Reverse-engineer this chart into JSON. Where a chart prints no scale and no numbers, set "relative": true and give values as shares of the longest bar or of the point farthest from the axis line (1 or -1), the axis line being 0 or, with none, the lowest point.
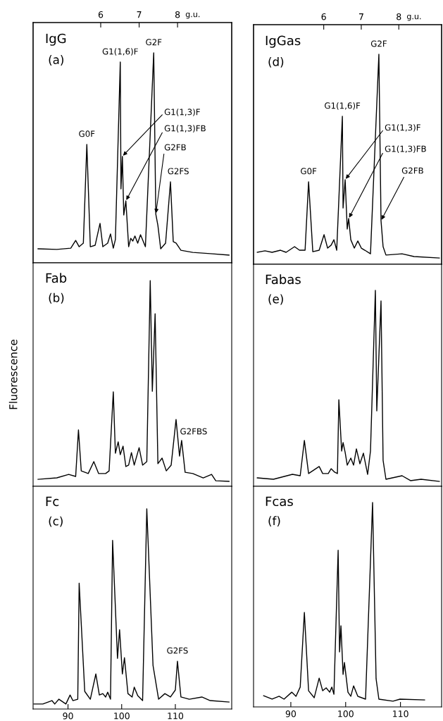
{
  "chart_data": [
    {
      "type": "line",
      "title": "IgG",
      "subtitle": "(a)",
      "relative": true,
      "tick_labels": false,
      "xlim": [
        83.5,
        120.5
      ],
      "x2lim": [
        4.24,
        9.41
      ],
      "x2ticks": [
        6,
        7,
        8
      ],
      "x2label": "g.u.",
      "x": [
        84.42,
        87.92,
        90.52,
        91.43,
        92.08,
        92.86,
        93.51,
        94.16,
        95.06,
        95.97,
        96.49,
        97.4,
        97.92,
        98.44,
        98.83,
        99.74,
        99.87,
        100.13,
        100.39,
        100.78,
        101.3,
        101.69,
        102.08,
        102.47,
        102.99,
        103.51,
        104.42,
        105.97,
        106.36,
        106.75,
        107.27,
        108.18,
        109.09,
        109.61,
        110.13,
        111.04,
        113.25,
        116.49,
        120.0
      ],
      "series": [
        {
          "color": "#000000",
          "values": [
            0.067,
            0.064,
            0.07,
            0.107,
            0.077,
            0.094,
            0.564,
            0.077,
            0.084,
            0.188,
            0.077,
            0.094,
            0.138,
            0.07,
            0.111,
            0.956,
            0.352,
            0.507,
            0.228,
            0.295,
            0.077,
            0.117,
            0.104,
            0.128,
            0.094,
            0.134,
            0.077,
            1.0,
            0.232,
            0.178,
            0.067,
            0.094,
            0.386,
            0.101,
            0.094,
            0.06,
            0.05,
            0.044,
            0.037
          ]
        }
      ],
      "annotations": [
        {
          "text": "G0F",
          "x": 93.51,
          "y": 0.564
        },
        {
          "text": "G1(1,6)F",
          "x": 99.74,
          "y": 0.956
        },
        {
          "text": "G2F",
          "x": 105.97,
          "y": 1.0
        },
        {
          "text": "G1(1,3)F",
          "x": 100.13,
          "y": 0.507
        },
        {
          "text": "G1(1,3)FB",
          "x": 100.78,
          "y": 0.295
        },
        {
          "text": "G2FB",
          "x": 106.36,
          "y": 0.232
        },
        {
          "text": "G2FS",
          "x": 109.09,
          "y": 0.386
        }
      ]
    },
    {
      "type": "line",
      "title": "Fab",
      "subtitle": "(b)",
      "ylabel": "Fluorescence",
      "relative": true,
      "tick_labels": false,
      "xlim": [
        83.5,
        120.5
      ],
      "x": [
        84.42,
        87.92,
        90.13,
        91.43,
        91.95,
        92.47,
        93.77,
        94.81,
        95.71,
        97.01,
        97.66,
        98.44,
        98.83,
        99.35,
        99.74,
        100.26,
        100.78,
        101.3,
        101.82,
        102.34,
        103.25,
        103.9,
        104.68,
        105.32,
        105.71,
        106.23,
        106.75,
        107.53,
        108.31,
        109.22,
        110.13,
        110.78,
        111.17,
        111.82,
        113.25,
        115.19,
        116.75,
        117.53,
        120.0
      ],
      "series": [
        {
          "color": "#000000",
          "values": [
            0.034,
            0.041,
            0.058,
            0.048,
            0.274,
            0.075,
            0.062,
            0.12,
            0.062,
            0.062,
            0.075,
            0.459,
            0.161,
            0.216,
            0.154,
            0.195,
            0.096,
            0.103,
            0.164,
            0.103,
            0.188,
            0.103,
            0.12,
            1.0,
            0.462,
            0.839,
            0.11,
            0.137,
            0.075,
            0.103,
            0.325,
            0.147,
            0.223,
            0.068,
            0.062,
            0.041,
            0.058,
            0.027,
            0.024
          ]
        }
      ],
      "annotations": [
        {
          "text": "G2FBS",
          "x": 110.13,
          "y": 0.325
        }
      ]
    },
    {
      "type": "line",
      "title": "Fc",
      "subtitle": "(c)",
      "relative": true,
      "tick_labels": "x",
      "xlim": [
        83.5,
        120.5
      ],
      "xticks": [
        90,
        100,
        110
      ],
      "x": [
        83.64,
        85.32,
        87.01,
        87.53,
        88.31,
        89.61,
        90.39,
        90.91,
        91.82,
        92.08,
        93.12,
        94.16,
        95.19,
        95.84,
        96.49,
        97.01,
        97.4,
        97.92,
        98.31,
        99.22,
        99.61,
        100.13,
        100.52,
        101.17,
        101.95,
        102.34,
        102.99,
        103.9,
        104.68,
        105.84,
        106.88,
        108.05,
        109.09,
        110.0,
        110.39,
        111.04,
        112.6,
        114.94,
        116.49,
        120.0
      ],
      "series": [
        {
          "color": "#000000",
          "values": [
            0.025,
            0.025,
            0.042,
            0.025,
            0.049,
            0.025,
            0.07,
            0.042,
            0.049,
            0.628,
            0.088,
            0.049,
            0.175,
            0.07,
            0.077,
            0.06,
            0.084,
            0.049,
            0.842,
            0.253,
            0.396,
            0.175,
            0.256,
            0.077,
            0.06,
            0.109,
            0.067,
            0.042,
            1.0,
            0.218,
            0.049,
            0.077,
            0.06,
            0.095,
            0.239,
            0.06,
            0.049,
            0.06,
            0.042,
            0.035
          ]
        }
      ],
      "annotations": [
        {
          "text": "G2FS",
          "x": 110.39,
          "y": 0.239
        }
      ]
    },
    {
      "type": "line",
      "title": "IgGas",
      "subtitle": "(d)",
      "relative": true,
      "tick_labels": false,
      "xlim": [
        83.2,
        117.5
      ],
      "x2lim": [
        4.13,
        9.14
      ],
      "x2ticks": [
        6,
        7,
        8
      ],
      "x2label": "g.u.",
      "x": [
        83.88,
        85.29,
        86.58,
        88.12,
        89.14,
        90.68,
        91.58,
        92.6,
        93.24,
        94.01,
        95.17,
        96.06,
        96.71,
        97.35,
        97.86,
        98.37,
        99.4,
        99.53,
        99.91,
        100.29,
        100.55,
        100.94,
        101.58,
        102.22,
        102.86,
        103.5,
        104.53,
        106.06,
        106.45,
        106.83,
        107.35,
        110.29,
        112.47,
        117.09
      ],
      "series": [
        {
          "color": "#000000",
          "values": [
            0.057,
            0.064,
            0.057,
            0.067,
            0.057,
            0.084,
            0.067,
            0.067,
            0.393,
            0.06,
            0.067,
            0.141,
            0.077,
            0.091,
            0.117,
            0.067,
            0.705,
            0.268,
            0.403,
            0.168,
            0.218,
            0.117,
            0.077,
            0.111,
            0.077,
            0.067,
            0.05,
            1.0,
            0.208,
            0.084,
            0.044,
            0.05,
            0.037,
            0.03
          ]
        }
      ],
      "annotations": [
        {
          "text": "G0F",
          "x": 93.24,
          "y": 0.393
        },
        {
          "text": "G1(1,6)F",
          "x": 99.4,
          "y": 0.705
        },
        {
          "text": "G2F",
          "x": 106.06,
          "y": 1.0
        },
        {
          "text": "G1(1,3)F",
          "x": 99.91,
          "y": 0.403
        },
        {
          "text": "G1(1,3)FB",
          "x": 100.55,
          "y": 0.218
        },
        {
          "text": "G2FB",
          "x": 106.45,
          "y": 0.208
        }
      ]
    },
    {
      "type": "line",
      "title": "Fabas",
      "subtitle": "(e)",
      "relative": true,
      "tick_labels": false,
      "xlim": [
        83.2,
        117.5
      ],
      "x": [
        83.88,
        86.83,
        90.29,
        91.71,
        92.47,
        93.24,
        95.17,
        95.81,
        96.83,
        97.35,
        97.99,
        98.5,
        98.76,
        99.27,
        99.53,
        99.91,
        100.29,
        100.94,
        101.45,
        101.96,
        102.6,
        103.24,
        104.01,
        104.53,
        105.42,
        105.68,
        106.45,
        106.83,
        107.35,
        110.29,
        111.83,
        113.76,
        117.09
      ],
      "series": [
        {
          "color": "#000000",
          "values": [
            0.043,
            0.036,
            0.061,
            0.054,
            0.234,
            0.065,
            0.101,
            0.065,
            0.065,
            0.09,
            0.072,
            0.065,
            0.442,
            0.18,
            0.223,
            0.173,
            0.108,
            0.144,
            0.108,
            0.191,
            0.115,
            0.169,
            0.061,
            0.18,
            1.0,
            0.385,
            0.946,
            0.133,
            0.036,
            0.054,
            0.029,
            0.036,
            0.025
          ]
        }
      ]
    },
    {
      "type": "line",
      "title": "Fcas",
      "subtitle": "(f)",
      "relative": true,
      "tick_labels": "x",
      "xlim": [
        83.2,
        117.5
      ],
      "xticks": [
        90,
        100,
        110
      ],
      "x": [
        85.04,
        86.58,
        87.86,
        88.76,
        90.17,
        90.94,
        91.71,
        92.47,
        93.24,
        94.27,
        95.17,
        95.81,
        96.45,
        97.09,
        97.48,
        97.86,
        98.63,
        98.89,
        99.14,
        99.53,
        99.78,
        100.42,
        100.94,
        101.45,
        102.22,
        103.63,
        104.91,
        105.55,
        106.06,
        108.63,
        109.91,
        114.4
      ],
      "series": [
        {
          "color": "#000000",
          "values": [
            0.055,
            0.038,
            0.052,
            0.038,
            0.072,
            0.052,
            0.097,
            0.462,
            0.079,
            0.045,
            0.141,
            0.079,
            0.093,
            0.072,
            0.097,
            0.062,
            0.766,
            0.269,
            0.397,
            0.159,
            0.217,
            0.072,
            0.052,
            0.103,
            0.052,
            0.038,
            1.0,
            0.138,
            0.038,
            0.028,
            0.038,
            0.034
          ]
        }
      ]
    }
  ]
}
